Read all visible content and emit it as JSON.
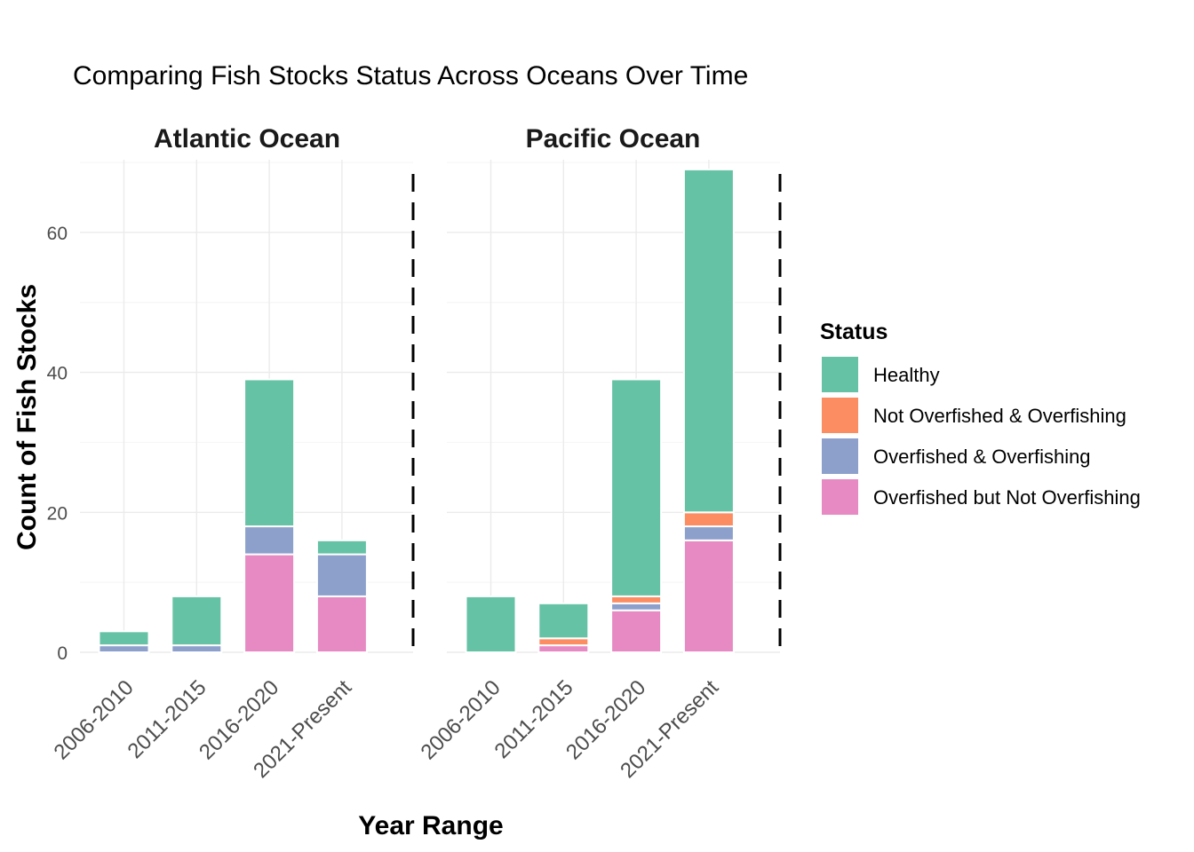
{
  "chart_data": {
    "type": "bar",
    "stacked": true,
    "title": "Comparing Fish Stocks Status Across Oceans Over Time",
    "xlabel": "Year Range",
    "ylabel": "Count of Fish Stocks",
    "ylim": [
      0,
      70
    ],
    "yticks": [
      0,
      20,
      40,
      60
    ],
    "grid": true,
    "legend": {
      "title": "Status",
      "position": "right",
      "entries": [
        {
          "name": "Healthy",
          "color": "#66c2a5"
        },
        {
          "name": "Not Overfished & Overfishing",
          "color": "#fc8d62"
        },
        {
          "name": "Overfished & Overfishing",
          "color": "#8da0cb"
        },
        {
          "name": "Overfished but Not Overfishing",
          "color": "#e78ac3"
        }
      ]
    },
    "stack_order": [
      "Overfished but Not Overfishing",
      "Overfished & Overfishing",
      "Not Overfished & Overfishing",
      "Healthy"
    ],
    "panels": [
      {
        "name": "Atlantic Ocean",
        "categories": [
          "2006-2010",
          "2011-2015",
          "2016-2020",
          "2021-Present"
        ],
        "series": [
          {
            "name": "Healthy",
            "values": [
              2,
              7,
              21,
              2
            ]
          },
          {
            "name": "Not Overfished & Overfishing",
            "values": [
              0,
              0,
              0,
              0
            ]
          },
          {
            "name": "Overfished & Overfishing",
            "values": [
              1,
              1,
              4,
              6
            ]
          },
          {
            "name": "Overfished but Not Overfishing",
            "values": [
              0,
              0,
              14,
              8
            ]
          }
        ]
      },
      {
        "name": "Pacific Ocean",
        "categories": [
          "2006-2010",
          "2011-2015",
          "2016-2020",
          "2021-Present"
        ],
        "series": [
          {
            "name": "Healthy",
            "values": [
              8,
              5,
              31,
              49
            ]
          },
          {
            "name": "Not Overfished & Overfishing",
            "values": [
              0,
              1,
              1,
              2
            ]
          },
          {
            "name": "Overfished & Overfishing",
            "values": [
              0,
              0,
              1,
              2
            ]
          },
          {
            "name": "Overfished but Not Overfishing",
            "values": [
              0,
              1,
              6,
              16
            ]
          }
        ]
      }
    ]
  }
}
